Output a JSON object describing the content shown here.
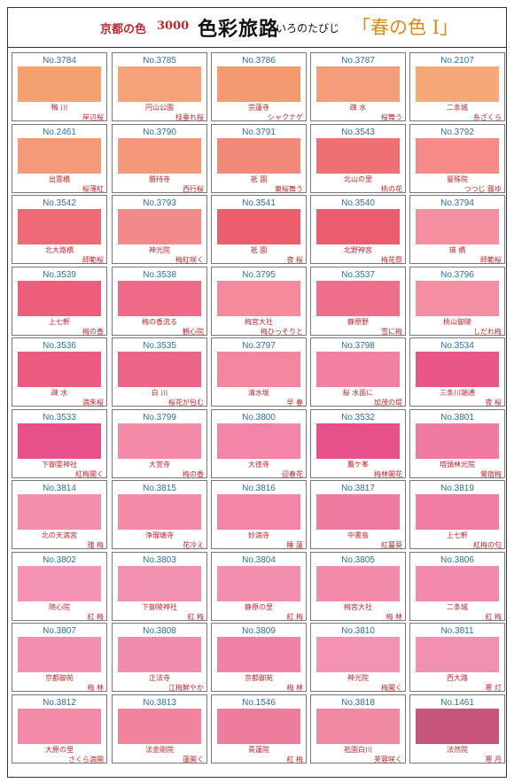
{
  "header": {
    "series": "京都の色",
    "number": "3000",
    "title": "色彩旅路",
    "subtitle": "いろのたびじ",
    "theme": "「春の色 Ⅰ」"
  },
  "colors": {
    "frame": "#333333",
    "label_red": "#c0262c",
    "code_blue": "#2c6ea8",
    "theme_orange": "#d98b16"
  },
  "rows": [
    [
      {
        "code": "No.3784",
        "name": "鴨 川",
        "sub": "岸辺桜",
        "color": "#f4a070"
      },
      {
        "code": "No.3785",
        "name": "円山公園",
        "sub": "枝垂れ桜",
        "color": "#f5a27a"
      },
      {
        "code": "No.3786",
        "name": "宗蓮寺",
        "sub": "シャクナゲ",
        "color": "#f49a72"
      },
      {
        "code": "No.3787",
        "name": "疎 水",
        "sub": "桜舞う",
        "color": "#f59c7a"
      },
      {
        "code": "No.2107",
        "name": "二条城",
        "sub": "糸ざくら",
        "color": "#f7a878"
      }
    ],
    [
      {
        "code": "No.2461",
        "name": "出雲橋",
        "sub": "桜薄紅",
        "color": "#f59a78"
      },
      {
        "code": "No.3790",
        "name": "勝持寺",
        "sub": "西行桜",
        "color": "#f4977a"
      },
      {
        "code": "No.3791",
        "name": "祇 園",
        "sub": "東桜舞う",
        "color": "#f28a7a"
      },
      {
        "code": "No.3543",
        "name": "北山の里",
        "sub": "桃の花",
        "color": "#ee6f74"
      },
      {
        "code": "No.3792",
        "name": "曼殊院",
        "sub": "つつじ 霧ゆ",
        "color": "#f58a86"
      }
    ],
    [
      {
        "code": "No.3542",
        "name": "北大路橋",
        "sub": "師範桜",
        "color": "#ef6a78"
      },
      {
        "code": "No.3793",
        "name": "神光院",
        "sub": "梅紅咲く",
        "color": "#f28a8c"
      },
      {
        "code": "No.3541",
        "name": "祇 園",
        "sub": "夜 桜",
        "color": "#ec5e6e"
      },
      {
        "code": "No.3540",
        "name": "北野神宮",
        "sub": "梅花祭",
        "color": "#ec5c70"
      },
      {
        "code": "No.3794",
        "name": "瑛 橋",
        "sub": "師範桜",
        "color": "#f590a0"
      }
    ],
    [
      {
        "code": "No.3539",
        "name": "上七軒",
        "sub": "梅の香",
        "color": "#ec5e7c"
      },
      {
        "code": "No.3538",
        "name": "梅の香流る",
        "sub": "観心院",
        "color": "#ee6a86"
      },
      {
        "code": "No.3795",
        "name": "梅宮大社",
        "sub": "梅ひっそりと",
        "color": "#f48a9c"
      },
      {
        "code": "No.3537",
        "name": "静原野",
        "sub": "雪に梅",
        "color": "#ef6e8a"
      },
      {
        "code": "No.3796",
        "name": "桃山御陵",
        "sub": "しだれ梅",
        "color": "#f48ea2"
      }
    ],
    [
      {
        "code": "No.3536",
        "name": "疎 水",
        "sub": "満朱桜",
        "color": "#ec5a80"
      },
      {
        "code": "No.3535",
        "name": "白 川",
        "sub": "桜花が包む",
        "color": "#ec6488"
      },
      {
        "code": "No.3797",
        "name": "清水坂",
        "sub": "早 春",
        "color": "#f486a0"
      },
      {
        "code": "No.3798",
        "name": "桜 水面に",
        "sub": "加茂の堤",
        "color": "#f280a0"
      },
      {
        "code": "No.3534",
        "name": "三条川端通",
        "sub": "夜 桜",
        "color": "#ea5686"
      }
    ],
    [
      {
        "code": "No.3533",
        "name": "下御霊神社",
        "sub": "紅梅開く",
        "color": "#e8508a"
      },
      {
        "code": "No.3799",
        "name": "大覚寺",
        "sub": "梅の香",
        "color": "#f48aa8"
      },
      {
        "code": "No.3800",
        "name": "大徳寺",
        "sub": "迎春花",
        "color": "#f386a8"
      },
      {
        "code": "No.3532",
        "name": "鷹ケ峯",
        "sub": "梅林開花",
        "color": "#e8508a"
      },
      {
        "code": "No.3801",
        "name": "塔頭林光院",
        "sub": "鶯宿梅",
        "color": "#f07aa2"
      }
    ],
    [
      {
        "code": "No.3814",
        "name": "北の天満宮",
        "sub": "瑰 梅",
        "color": "#f290ac"
      },
      {
        "code": "No.3815",
        "name": "浄瑠璃寺",
        "sub": "花冷え",
        "color": "#f48aa8"
      },
      {
        "code": "No.3816",
        "name": "妙満寺",
        "sub": "睡 蓮",
        "color": "#f386a6"
      },
      {
        "code": "No.3817",
        "name": "中書島",
        "sub": "紅蔓葵",
        "color": "#f07aa0"
      },
      {
        "code": "No.3819",
        "name": "上七軒",
        "sub": "紅梅の匂",
        "color": "#f07ca4"
      }
    ],
    [
      {
        "code": "No.3802",
        "name": "随心院",
        "sub": "紅 梅",
        "color": "#f493b4"
      },
      {
        "code": "No.3803",
        "name": "下御陵神社",
        "sub": "紅 梅",
        "color": "#f290b0"
      },
      {
        "code": "No.3804",
        "name": "静原の里",
        "sub": "紅 梅",
        "color": "#f28eae"
      },
      {
        "code": "No.3805",
        "name": "梅宮大社",
        "sub": "梅 林",
        "color": "#f38caa"
      },
      {
        "code": "No.3806",
        "name": "二条城",
        "sub": "紅 梅",
        "color": "#f18aac"
      }
    ],
    [
      {
        "code": "No.3807",
        "name": "京都御苑",
        "sub": "梅 林",
        "color": "#f28eb0"
      },
      {
        "code": "No.3808",
        "name": "正法寺",
        "sub": "江梅鮮やか",
        "color": "#f28cae"
      },
      {
        "code": "No.3809",
        "name": "京都御苑",
        "sub": "梅 林",
        "color": "#ef82a6"
      },
      {
        "code": "No.3810",
        "name": "神光院",
        "sub": "梅開く",
        "color": "#f492b4"
      },
      {
        "code": "No.3811",
        "name": "西大路",
        "sub": "寒 灯",
        "color": "#f290b2"
      }
    ],
    [
      {
        "code": "No.3812",
        "name": "大原の里",
        "sub": "さくら満開",
        "color": "#f28aa8"
      },
      {
        "code": "No.3813",
        "name": "法金剛院",
        "sub": "蓮開く",
        "color": "#f0849e"
      },
      {
        "code": "No.1546",
        "name": "青蓮院",
        "sub": "紅 梅",
        "color": "#ee7c9c"
      },
      {
        "code": "No.3818",
        "name": "祇園白川",
        "sub": "芙蓉咲く",
        "color": "#f08aa4"
      },
      {
        "code": "No.1461",
        "name": "法然院",
        "sub": "寒 月",
        "color": "#c8567c"
      }
    ]
  ]
}
